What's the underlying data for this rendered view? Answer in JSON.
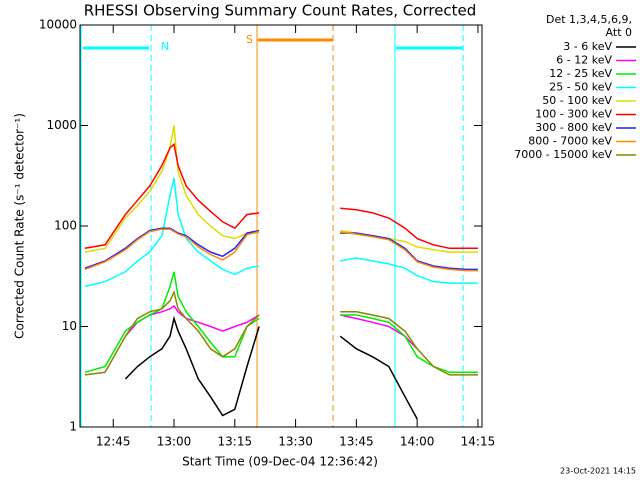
{
  "chart_data": {
    "type": "line",
    "title": "RHESSI Observing Summary Count Rates, Corrected",
    "detector_note": [
      "Det 1,3,4,5,6,9,",
      "Att 0"
    ],
    "xlabel": "Start Time (09-Dec-04 12:36:42)",
    "ylabel": "Corrected Count Rate (s⁻¹ detector⁻¹)",
    "footer": "23-Oct-2021 14:15",
    "annotations": [
      "N",
      "S"
    ],
    "log_y": true,
    "ylim": [
      1,
      10000
    ],
    "yticks": [
      1,
      10,
      100,
      1000,
      10000
    ],
    "xlim": [
      756.8,
      856
    ],
    "xticks": [
      {
        "value": 765,
        "label": "12:45"
      },
      {
        "value": 780,
        "label": "13:00"
      },
      {
        "value": 795,
        "label": "13:15"
      },
      {
        "value": 810,
        "label": "13:30"
      },
      {
        "value": 825,
        "label": "13:45"
      },
      {
        "value": 840,
        "label": "14:00"
      },
      {
        "value": 855,
        "label": "14:15"
      }
    ],
    "x": [
      758,
      763,
      768,
      771,
      774,
      777,
      779,
      780,
      781,
      783,
      786,
      789,
      792,
      795,
      798,
      801,
      811,
      821,
      825,
      829,
      833,
      837,
      840,
      844,
      848,
      852,
      855
    ],
    "series": [
      {
        "name": "3 - 6 keV",
        "color": "#000000",
        "values": [
          null,
          null,
          3,
          4,
          5,
          6,
          8,
          12,
          9,
          6,
          3,
          2,
          1.3,
          1.5,
          4,
          10,
          null,
          8,
          6,
          5,
          4,
          2,
          1.2,
          null,
          null,
          null,
          null
        ]
      },
      {
        "name": "6 - 12 keV",
        "color": "#ff00ff",
        "values": [
          null,
          null,
          8,
          11,
          13,
          14,
          15,
          16,
          14,
          12,
          11,
          10,
          9,
          10,
          11,
          13,
          null,
          13,
          12,
          11,
          10,
          8,
          6,
          null,
          null,
          null,
          null
        ]
      },
      {
        "name": "12 - 25 keV",
        "color": "#00ee00",
        "values": [
          3.5,
          4,
          9,
          11,
          13,
          15,
          25,
          35,
          20,
          14,
          10,
          7,
          5,
          5,
          10,
          12,
          null,
          13,
          13,
          12,
          11,
          8,
          5,
          4,
          3.5,
          3.5,
          3.5
        ]
      },
      {
        "name": "25 - 50 keV",
        "color": "#00ffff",
        "values": [
          25,
          28,
          35,
          45,
          55,
          80,
          200,
          300,
          130,
          75,
          55,
          45,
          37,
          33,
          38,
          40,
          null,
          45,
          48,
          45,
          42,
          38,
          32,
          28,
          27,
          27,
          27
        ]
      },
      {
        "name": "50 - 100 keV",
        "color": "#dddd00",
        "values": [
          55,
          60,
          120,
          160,
          220,
          350,
          600,
          1000,
          350,
          200,
          130,
          100,
          80,
          75,
          85,
          85,
          null,
          90,
          85,
          80,
          75,
          70,
          62,
          58,
          55,
          55,
          55
        ]
      },
      {
        "name": "100 - 300 keV",
        "color": "#ff0000",
        "values": [
          60,
          65,
          130,
          180,
          250,
          400,
          600,
          650,
          400,
          250,
          180,
          140,
          110,
          95,
          130,
          135,
          null,
          150,
          145,
          135,
          120,
          95,
          75,
          65,
          60,
          60,
          60
        ]
      },
      {
        "name": "300 - 800 keV",
        "color": "#2020ff",
        "values": [
          38,
          45,
          60,
          75,
          90,
          95,
          95,
          90,
          85,
          80,
          65,
          55,
          50,
          60,
          85,
          90,
          null,
          85,
          85,
          80,
          75,
          60,
          45,
          40,
          38,
          37,
          37
        ]
      },
      {
        "name": "800 - 7000 keV",
        "color": "#ff8800",
        "values": [
          37,
          44,
          58,
          73,
          88,
          93,
          93,
          88,
          83,
          78,
          62,
          52,
          46,
          55,
          82,
          88,
          null,
          87,
          83,
          78,
          73,
          58,
          44,
          39,
          37,
          36,
          36
        ]
      },
      {
        "name": "7000 - 15000 keV",
        "color": "#888800",
        "values": [
          3.3,
          3.5,
          8,
          12,
          14,
          15,
          18,
          22,
          15,
          12,
          9,
          6,
          5,
          6,
          10,
          13,
          null,
          14,
          14,
          13,
          12,
          9,
          6,
          4,
          3.3,
          3.3,
          3.3
        ]
      }
    ]
  }
}
